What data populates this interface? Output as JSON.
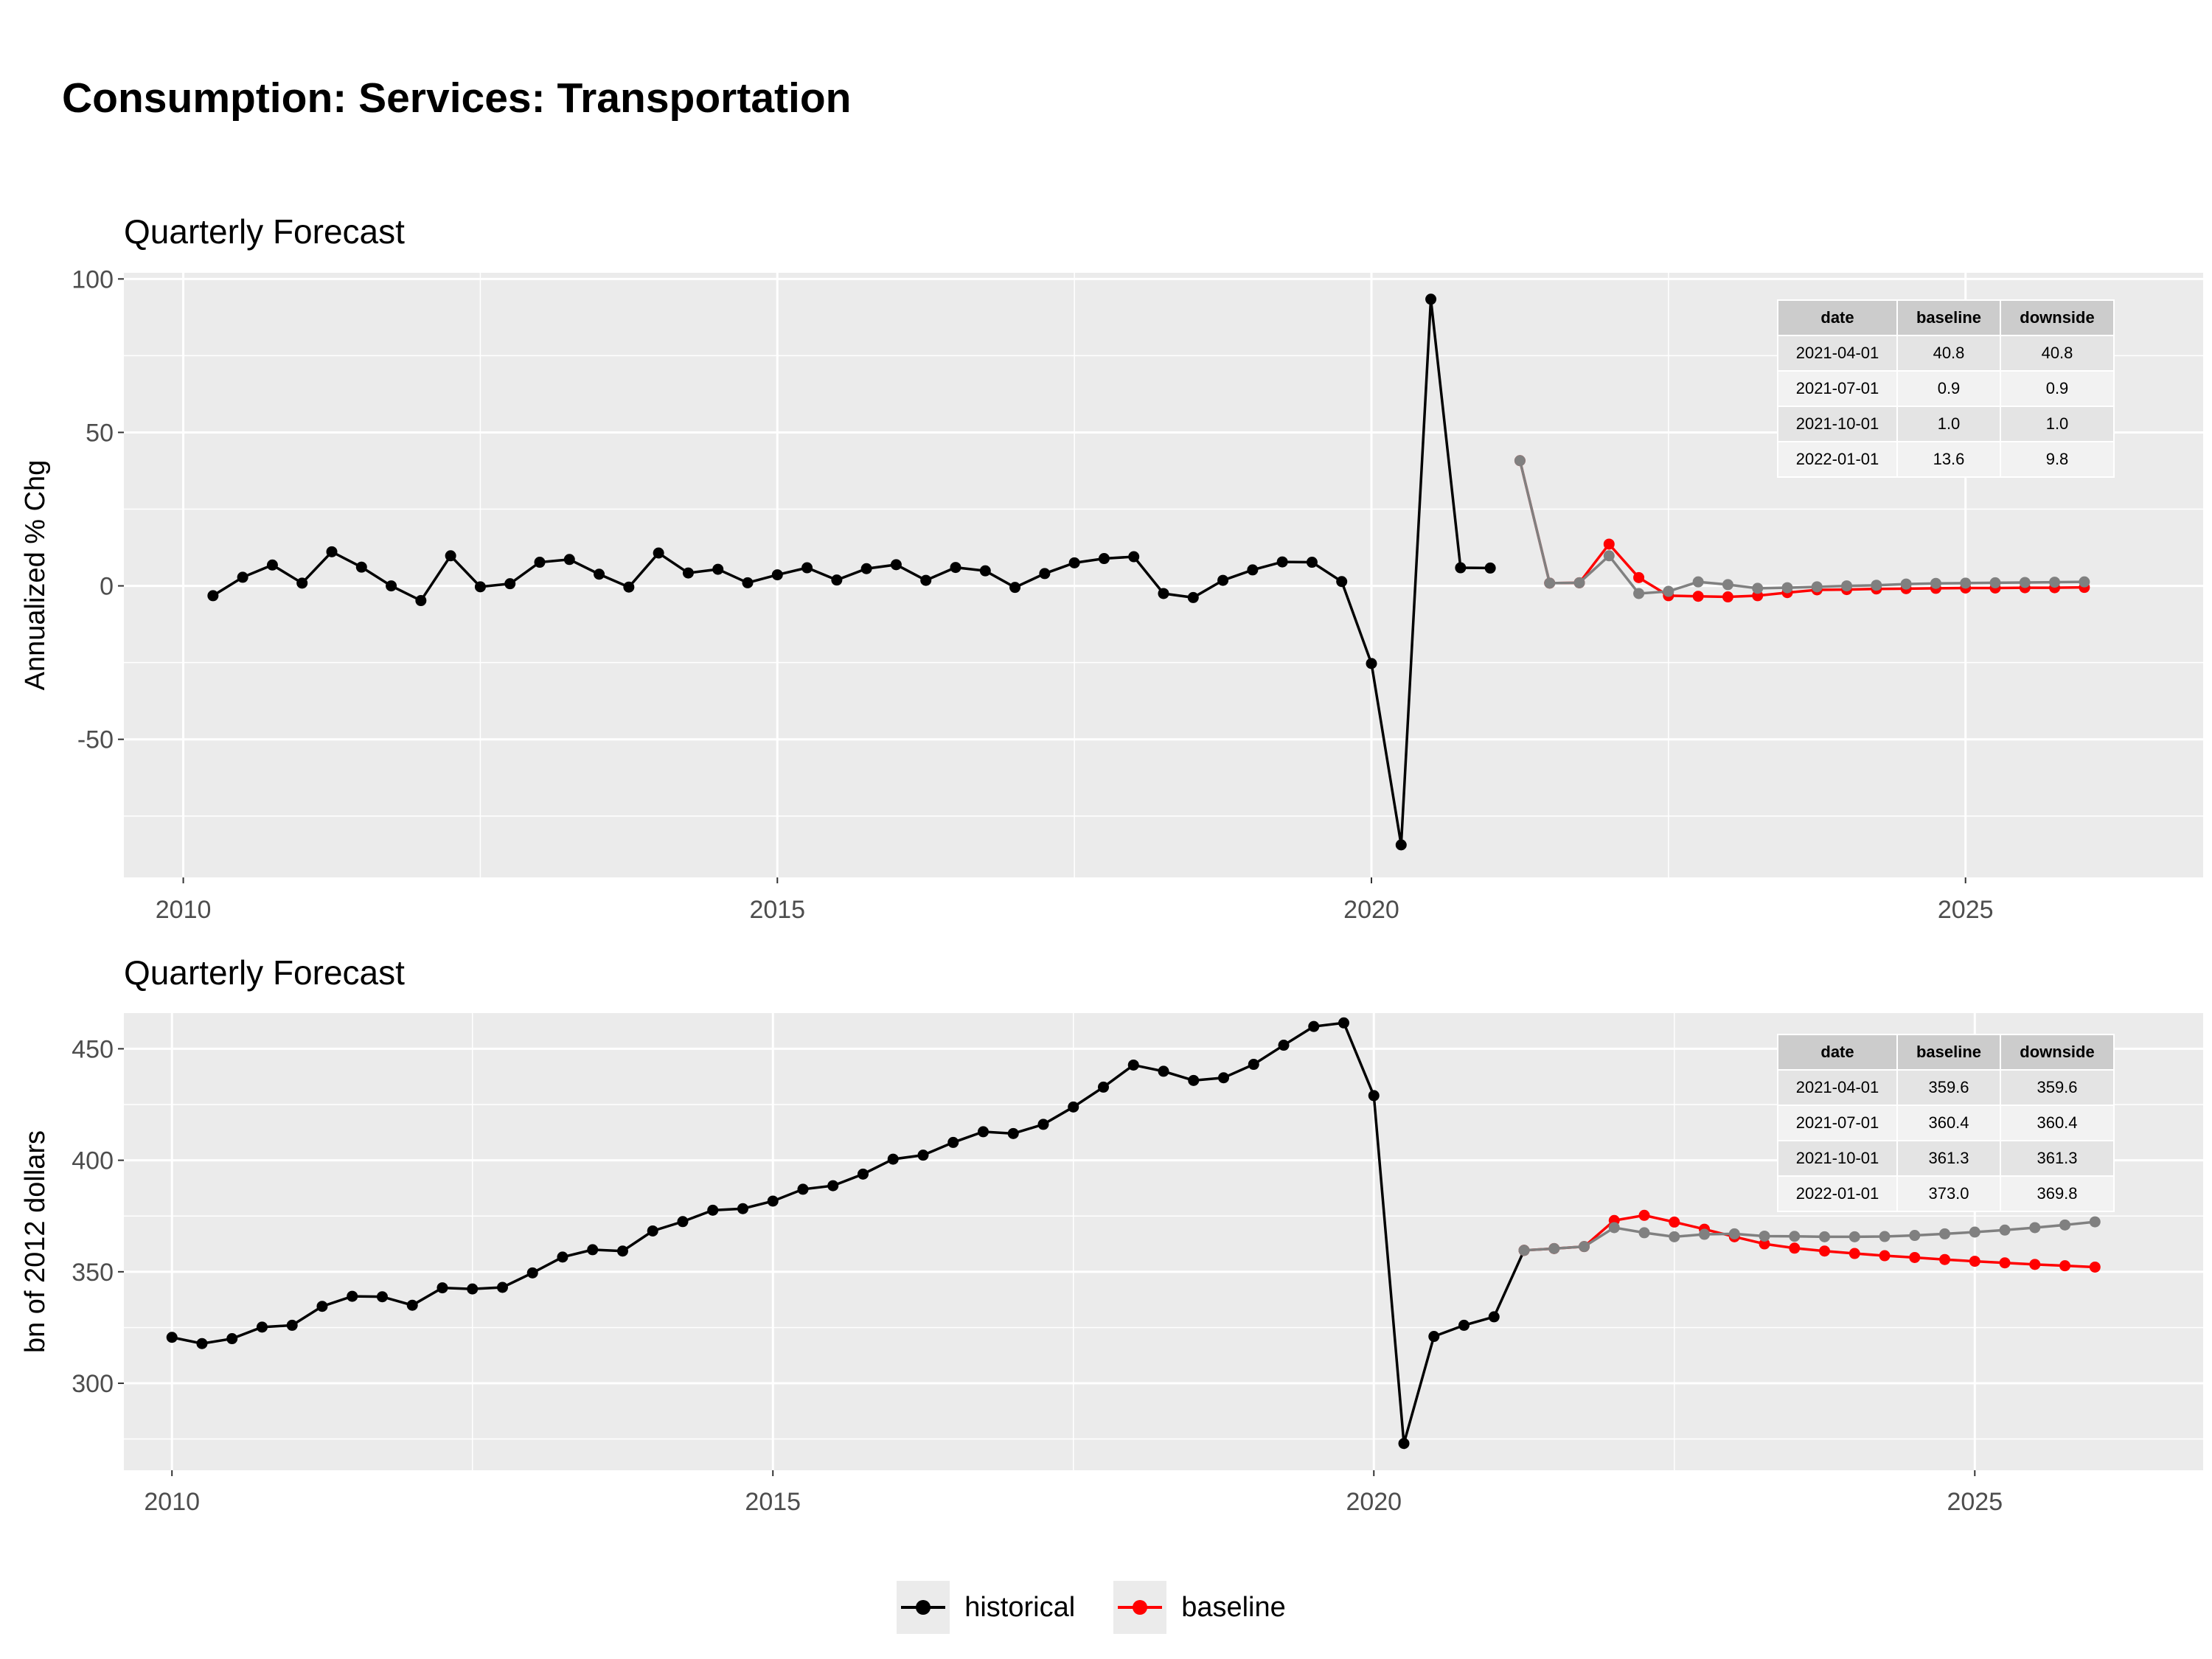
{
  "title": "Consumption: Services: Transportation",
  "legend": [
    {
      "label": "historical",
      "color": "#000000"
    },
    {
      "label": "baseline",
      "color": "#ff0000"
    }
  ],
  "colors": {
    "historical": "#000000",
    "baseline": "#ff0000",
    "downside": "#808080",
    "panel_bg": "#ebebeb",
    "grid": "#ffffff"
  },
  "chart_data": [
    {
      "type": "line",
      "subtitle": "Quarterly Forecast",
      "ylabel": "Annualized % Chg",
      "xlim": [
        2009.5,
        2027.0
      ],
      "ylim": [
        -95,
        102
      ],
      "x_ticks": [
        2010,
        2015,
        2020,
        2025
      ],
      "y_ticks": [
        -50,
        0,
        50,
        100
      ],
      "grid": true,
      "series": [
        {
          "name": "historical",
          "color": "#000000",
          "start": 2010.25,
          "values": [
            -3.2,
            2.8,
            6.8,
            0.9,
            11.1,
            6.1,
            0.0,
            -4.8,
            9.8,
            -0.3,
            0.7,
            7.7,
            8.6,
            3.8,
            -0.4,
            10.7,
            4.2,
            5.4,
            1.0,
            3.6,
            5.9,
            1.9,
            5.6,
            6.9,
            1.8,
            6.0,
            4.9,
            -0.5,
            4.0,
            7.5,
            8.9,
            9.5,
            -2.5,
            -3.8,
            1.8,
            5.2,
            7.8,
            7.7,
            1.4,
            -25.3,
            -84.4,
            93.4,
            5.9,
            5.8
          ]
        },
        {
          "name": "baseline",
          "color": "#ff0000",
          "start": 2021.25,
          "values": [
            40.8,
            0.9,
            1.0,
            13.6,
            2.7,
            -3.2,
            -3.4,
            -3.6,
            -3.2,
            -2.2,
            -1.3,
            -1.2,
            -1.0,
            -0.9,
            -0.8,
            -0.7,
            -0.7,
            -0.6,
            -0.6,
            -0.5
          ]
        },
        {
          "name": "downside",
          "color": "#808080",
          "start": 2021.25,
          "values": [
            40.8,
            0.9,
            1.0,
            9.8,
            -2.5,
            -1.8,
            1.3,
            0.4,
            -0.8,
            -0.6,
            -0.3,
            0.0,
            0.2,
            0.6,
            0.8,
            0.9,
            1.0,
            1.1,
            1.2,
            1.3
          ]
        }
      ],
      "table": {
        "headers": [
          "date",
          "baseline",
          "downside"
        ],
        "rows": [
          [
            "2021-04-01",
            "40.8",
            "40.8"
          ],
          [
            "2021-07-01",
            "0.9",
            "0.9"
          ],
          [
            "2021-10-01",
            "1.0",
            "1.0"
          ],
          [
            "2022-01-01",
            "13.6",
            "9.8"
          ]
        ]
      }
    },
    {
      "type": "line",
      "subtitle": "Quarterly Forecast",
      "ylabel": "bn of 2012 dollars",
      "xlim": [
        2009.6,
        2026.9
      ],
      "ylim": [
        261,
        466
      ],
      "x_ticks": [
        2010,
        2015,
        2020,
        2025
      ],
      "y_ticks": [
        300,
        350,
        400,
        450
      ],
      "grid": true,
      "series": [
        {
          "name": "historical",
          "color": "#000000",
          "start": 2010.0,
          "values": [
            320.6,
            317.8,
            320.0,
            325.2,
            326.0,
            334.5,
            339.0,
            338.8,
            335.0,
            342.8,
            342.3,
            343.0,
            349.5,
            356.6,
            359.9,
            359.3,
            368.3,
            372.5,
            377.6,
            378.3,
            381.7,
            387.0,
            388.6,
            393.8,
            400.5,
            402.3,
            408.0,
            412.8,
            412.0,
            416.1,
            423.9,
            432.8,
            442.7,
            439.9,
            435.8,
            437.0,
            443.0,
            451.6,
            460.0,
            461.6,
            429.0,
            273.0,
            321.0,
            326.0,
            329.8,
            359.6
          ]
        },
        {
          "name": "baseline",
          "color": "#ff0000",
          "start": 2021.25,
          "values": [
            359.6,
            360.4,
            361.3,
            373.0,
            375.3,
            372.3,
            369.1,
            365.7,
            362.5,
            360.6,
            359.3,
            358.2,
            357.2,
            356.4,
            355.5,
            354.7,
            354.0,
            353.3,
            352.7,
            352.1
          ]
        },
        {
          "name": "downside",
          "color": "#808080",
          "start": 2021.25,
          "values": [
            359.6,
            360.4,
            361.3,
            369.8,
            367.5,
            365.7,
            366.8,
            367.0,
            366.0,
            365.9,
            365.7,
            365.7,
            365.8,
            366.3,
            367.0,
            367.8,
            368.7,
            369.8,
            371.0,
            372.4
          ]
        }
      ],
      "table": {
        "headers": [
          "date",
          "baseline",
          "downside"
        ],
        "rows": [
          [
            "2021-04-01",
            "359.6",
            "359.6"
          ],
          [
            "2021-07-01",
            "360.4",
            "360.4"
          ],
          [
            "2021-10-01",
            "361.3",
            "361.3"
          ],
          [
            "2022-01-01",
            "373.0",
            "369.8"
          ]
        ]
      }
    }
  ]
}
